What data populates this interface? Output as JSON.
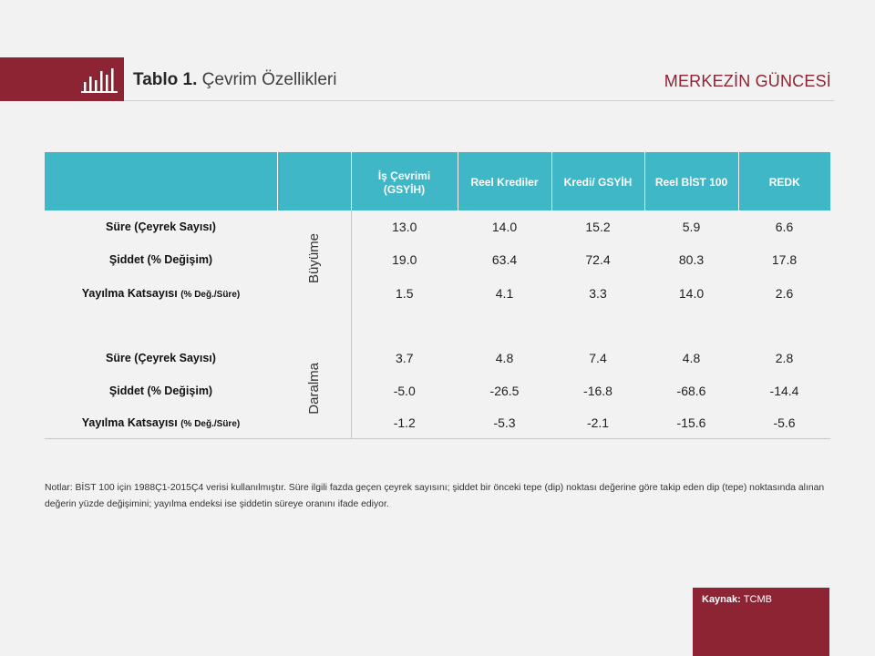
{
  "colors": {
    "brand_maroon": "#8c2434",
    "table_header_teal": "#3fb7c7",
    "background": "#f2f2f2"
  },
  "header": {
    "icon": "bar-chart-icon",
    "title_bold": "Tablo 1.",
    "title_rest": "Çevrim Özellikleri",
    "brand": "MERKEZİN GÜNCESİ"
  },
  "table": {
    "columns": [
      "İş Çevrimi (GSYİH)",
      "Reel Krediler",
      "Kredi/ GSYİH",
      "Reel BİST 100",
      "REDK"
    ],
    "groups": [
      {
        "label": "Büyüme",
        "rows": [
          {
            "label": "Süre (Çeyrek Sayısı)",
            "values": [
              "13.0",
              "14.0",
              "15.2",
              "5.9",
              "6.6"
            ]
          },
          {
            "label": "Şiddet (% Değişim)",
            "values": [
              "19.0",
              "63.4",
              "72.4",
              "80.3",
              "17.8"
            ]
          },
          {
            "label": "Yayılma Katsayısı",
            "label_small": "(% Değ./Süre)",
            "values": [
              "1.5",
              "4.1",
              "3.3",
              "14.0",
              "2.6"
            ]
          }
        ]
      },
      {
        "label": "Daralma",
        "rows": [
          {
            "label": "Süre (Çeyrek Sayısı)",
            "values": [
              "3.7",
              "4.8",
              "7.4",
              "4.8",
              "2.8"
            ]
          },
          {
            "label": "Şiddet (% Değişim)",
            "values": [
              "-5.0",
              "-26.5",
              "-16.8",
              "-68.6",
              "-14.4"
            ]
          },
          {
            "label": "Yayılma Katsayısı",
            "label_small": "(% Değ./Süre)",
            "values": [
              "-1.2",
              "-5.3",
              "-2.1",
              "-15.6",
              "-5.6"
            ]
          }
        ]
      }
    ]
  },
  "notes": "Notlar: BİST 100 için 1988Ç1-2015Ç4 verisi kullanılmıştır. Süre ilgili fazda geçen çeyrek sayısını; şiddet bir önceki tepe (dip) noktası değerine göre takip eden dip (tepe)  noktasında alınan değerin yüzde değişimini; yayılma endeksi ise şiddetin süreye oranını ifade ediyor.",
  "source": {
    "label": "Kaynak:",
    "value": "TCMB"
  }
}
